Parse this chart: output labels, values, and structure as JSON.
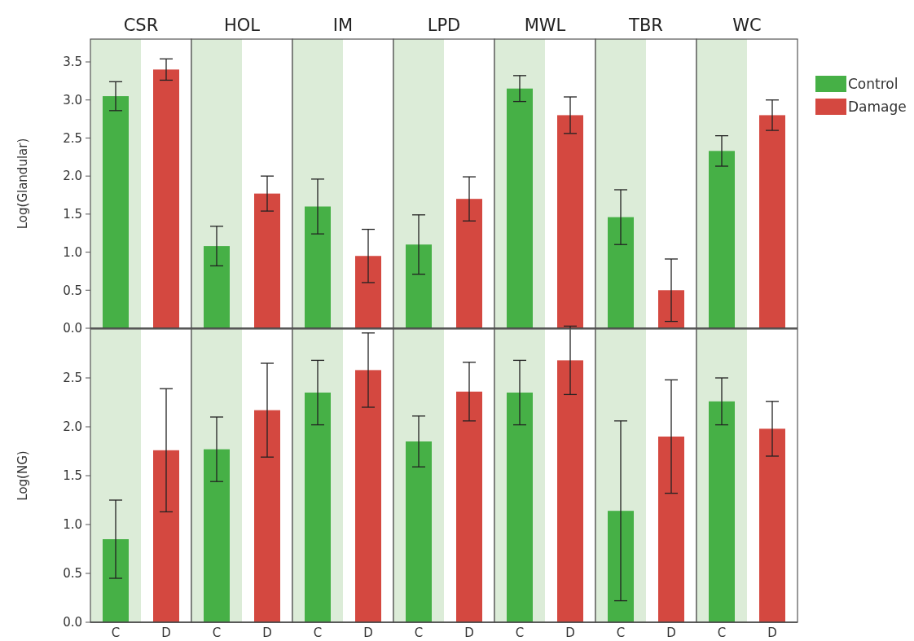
{
  "chart_data": [
    {
      "type": "bar",
      "title": "CSR",
      "ylabel": "Log(Glandular)",
      "categories": [
        "C",
        "D"
      ],
      "ylim": [
        0,
        3.8
      ],
      "yticks": [
        {
          "value": 0,
          "label": "0.0"
        },
        0.5,
        {
          "value": 1,
          "label": "1.0"
        },
        1.5,
        {
          "value": 2,
          "label": "2.0"
        },
        2.5,
        {
          "value": 3,
          "label": "3.0"
        },
        3.5
      ],
      "tick_labels": "y",
      "bands": [
        {
          "axis": "x",
          "from": "C",
          "to": "C",
          "color": "#dcecd8"
        }
      ],
      "series": [
        {
          "color": "#46b046",
          "values": [
            3.05,
            null
          ],
          "errors": [
            0.19,
            null
          ]
        },
        {
          "color": "#d44840",
          "values": [
            null,
            3.4
          ],
          "errors": [
            null,
            0.14
          ]
        }
      ]
    },
    {
      "type": "bar",
      "title": "HOL",
      "categories": [
        "C",
        "D"
      ],
      "ylim": [
        0,
        3.8
      ],
      "yticks": [
        0,
        0.5,
        1,
        1.5,
        2,
        2.5,
        3,
        3.5
      ],
      "tick_labels": false,
      "bands": [
        {
          "axis": "x",
          "from": "C",
          "to": "C",
          "color": "#dcecd8"
        }
      ],
      "series": [
        {
          "color": "#46b046",
          "values": [
            1.08,
            null
          ],
          "errors": [
            0.26,
            null
          ]
        },
        {
          "color": "#d44840",
          "values": [
            null,
            1.77
          ],
          "errors": [
            null,
            0.23
          ]
        }
      ]
    },
    {
      "type": "bar",
      "title": "IM",
      "categories": [
        "C",
        "D"
      ],
      "ylim": [
        0,
        3.8
      ],
      "yticks": [
        0,
        0.5,
        1,
        1.5,
        2,
        2.5,
        3,
        3.5
      ],
      "tick_labels": false,
      "bands": [
        {
          "axis": "x",
          "from": "C",
          "to": "C",
          "color": "#dcecd8"
        }
      ],
      "series": [
        {
          "color": "#46b046",
          "values": [
            1.6,
            null
          ],
          "errors": [
            0.36,
            null
          ]
        },
        {
          "color": "#d44840",
          "values": [
            null,
            0.95
          ],
          "errors": [
            null,
            0.35
          ]
        }
      ]
    },
    {
      "type": "bar",
      "title": "LPD",
      "categories": [
        "C",
        "D"
      ],
      "ylim": [
        0,
        3.8
      ],
      "yticks": [
        0,
        0.5,
        1,
        1.5,
        2,
        2.5,
        3,
        3.5
      ],
      "tick_labels": false,
      "bands": [
        {
          "axis": "x",
          "from": "C",
          "to": "C",
          "color": "#dcecd8"
        }
      ],
      "series": [
        {
          "color": "#46b046",
          "values": [
            1.1,
            null
          ],
          "errors": [
            0.39,
            null
          ]
        },
        {
          "color": "#d44840",
          "values": [
            null,
            1.7
          ],
          "errors": [
            null,
            0.29
          ]
        }
      ]
    },
    {
      "type": "bar",
      "title": "MWL",
      "categories": [
        "C",
        "D"
      ],
      "ylim": [
        0,
        3.8
      ],
      "yticks": [
        0,
        0.5,
        1,
        1.5,
        2,
        2.5,
        3,
        3.5
      ],
      "tick_labels": false,
      "bands": [
        {
          "axis": "x",
          "from": "C",
          "to": "C",
          "color": "#dcecd8"
        }
      ],
      "series": [
        {
          "color": "#46b046",
          "values": [
            3.15,
            null
          ],
          "errors": [
            0.17,
            null
          ]
        },
        {
          "color": "#d44840",
          "values": [
            null,
            2.8
          ],
          "errors": [
            null,
            0.24
          ]
        }
      ]
    },
    {
      "type": "bar",
      "title": "TBR",
      "categories": [
        "C",
        "D"
      ],
      "ylim": [
        0,
        3.8
      ],
      "yticks": [
        0,
        0.5,
        1,
        1.5,
        2,
        2.5,
        3,
        3.5
      ],
      "tick_labels": false,
      "bands": [
        {
          "axis": "x",
          "from": "C",
          "to": "C",
          "color": "#dcecd8"
        }
      ],
      "series": [
        {
          "color": "#46b046",
          "values": [
            1.46,
            null
          ],
          "errors": [
            0.36,
            null
          ]
        },
        {
          "color": "#d44840",
          "values": [
            null,
            0.5
          ],
          "errors": [
            null,
            0.41
          ]
        }
      ]
    },
    {
      "type": "bar",
      "title": "WC",
      "categories": [
        "C",
        "D"
      ],
      "ylim": [
        0,
        3.8
      ],
      "yticks": [
        0,
        0.5,
        1,
        1.5,
        2,
        2.5,
        3,
        3.5
      ],
      "tick_labels": false,
      "legend": "right",
      "bands": [
        {
          "axis": "x",
          "from": "C",
          "to": "C",
          "color": "#dcecd8"
        }
      ],
      "series": [
        {
          "name": "Control",
          "color": "#46b046",
          "values": [
            2.33,
            null
          ],
          "errors": [
            0.2,
            null
          ]
        },
        {
          "name": "Damage",
          "color": "#d44840",
          "values": [
            null,
            2.8
          ],
          "errors": [
            null,
            0.2
          ]
        }
      ]
    },
    {
      "type": "bar",
      "ylabel": "Log(NG)",
      "categories": [
        "C",
        "D"
      ],
      "ylim": [
        0,
        3.0
      ],
      "yticks": [
        {
          "value": 0,
          "label": "0.0"
        },
        0.5,
        {
          "value": 1,
          "label": "1.0"
        },
        1.5,
        {
          "value": 2,
          "label": "2.0"
        },
        2.5
      ],
      "bands": [
        {
          "axis": "x",
          "from": "C",
          "to": "C",
          "color": "#dcecd8"
        }
      ],
      "series": [
        {
          "color": "#46b046",
          "values": [
            0.85,
            null
          ],
          "errors": [
            0.4,
            null
          ]
        },
        {
          "color": "#d44840",
          "values": [
            null,
            1.76
          ],
          "errors": [
            null,
            0.63
          ]
        }
      ]
    },
    {
      "type": "bar",
      "categories": [
        "C",
        "D"
      ],
      "ylim": [
        0,
        3.0
      ],
      "yticks": [
        0,
        0.5,
        1,
        1.5,
        2,
        2.5
      ],
      "tick_labels": "x",
      "bands": [
        {
          "axis": "x",
          "from": "C",
          "to": "C",
          "color": "#dcecd8"
        }
      ],
      "series": [
        {
          "color": "#46b046",
          "values": [
            1.77,
            null
          ],
          "errors": [
            0.33,
            null
          ]
        },
        {
          "color": "#d44840",
          "values": [
            null,
            2.17
          ],
          "errors": [
            null,
            0.48
          ]
        }
      ]
    },
    {
      "type": "bar",
      "categories": [
        "C",
        "D"
      ],
      "ylim": [
        0,
        3.0
      ],
      "yticks": [
        0,
        0.5,
        1,
        1.5,
        2,
        2.5
      ],
      "tick_labels": "x",
      "bands": [
        {
          "axis": "x",
          "from": "C",
          "to": "C",
          "color": "#dcecd8"
        }
      ],
      "series": [
        {
          "color": "#46b046",
          "values": [
            2.35,
            null
          ],
          "errors": [
            0.33,
            null
          ]
        },
        {
          "color": "#d44840",
          "values": [
            null,
            2.58
          ],
          "errors": [
            null,
            0.38
          ]
        }
      ]
    },
    {
      "type": "bar",
      "categories": [
        "C",
        "D"
      ],
      "ylim": [
        0,
        3.0
      ],
      "yticks": [
        0,
        0.5,
        1,
        1.5,
        2,
        2.5
      ],
      "tick_labels": "x",
      "bands": [
        {
          "axis": "x",
          "from": "C",
          "to": "C",
          "color": "#dcecd8"
        }
      ],
      "series": [
        {
          "color": "#46b046",
          "values": [
            1.85,
            null
          ],
          "errors": [
            0.26,
            null
          ]
        },
        {
          "color": "#d44840",
          "values": [
            null,
            2.36
          ],
          "errors": [
            null,
            0.3
          ]
        }
      ]
    },
    {
      "type": "bar",
      "categories": [
        "C",
        "D"
      ],
      "ylim": [
        0,
        3.0
      ],
      "yticks": [
        0,
        0.5,
        1,
        1.5,
        2,
        2.5
      ],
      "tick_labels": "x",
      "bands": [
        {
          "axis": "x",
          "from": "C",
          "to": "C",
          "color": "#dcecd8"
        }
      ],
      "series": [
        {
          "color": "#46b046",
          "values": [
            2.35,
            null
          ],
          "errors": [
            0.33,
            null
          ]
        },
        {
          "color": "#d44840",
          "values": [
            null,
            2.68
          ],
          "errors": [
            null,
            0.35
          ]
        }
      ]
    },
    {
      "type": "bar",
      "categories": [
        "C",
        "D"
      ],
      "ylim": [
        0,
        3.0
      ],
      "yticks": [
        0,
        0.5,
        1,
        1.5,
        2,
        2.5
      ],
      "tick_labels": "x",
      "bands": [
        {
          "axis": "x",
          "from": "C",
          "to": "C",
          "color": "#dcecd8"
        }
      ],
      "series": [
        {
          "color": "#46b046",
          "values": [
            1.14,
            null
          ],
          "errors": [
            0.92,
            null
          ]
        },
        {
          "color": "#d44840",
          "values": [
            null,
            1.9
          ],
          "errors": [
            null,
            0.58
          ]
        }
      ]
    },
    {
      "type": "bar",
      "categories": [
        "C",
        "D"
      ],
      "ylim": [
        0,
        3.0
      ],
      "yticks": [
        0,
        0.5,
        1,
        1.5,
        2,
        2.5
      ],
      "tick_labels": "x",
      "bands": [
        {
          "axis": "x",
          "from": "C",
          "to": "C",
          "color": "#dcecd8"
        }
      ],
      "series": [
        {
          "color": "#46b046",
          "values": [
            2.26,
            null
          ],
          "errors": [
            0.24,
            null
          ]
        },
        {
          "color": "#d44840",
          "values": [
            null,
            1.98
          ],
          "errors": [
            null,
            0.28
          ]
        }
      ]
    }
  ]
}
